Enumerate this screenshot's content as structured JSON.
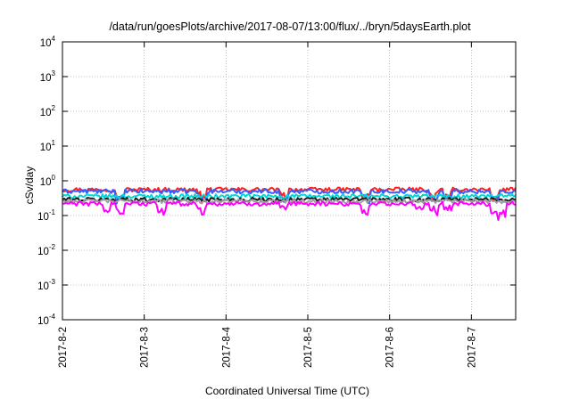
{
  "chart_data": {
    "type": "line",
    "title": "/data/run/goesPlots/archive/2017-08-07/13:00/flux/../bryn/5daysEarth.plot",
    "xlabel": "Coordinated Universal Time (UTC)",
    "ylabel": "cSv/day",
    "yscale": "log",
    "ylim": [
      0.0001,
      10000
    ],
    "xlim": [
      "2017-08-02T00:00",
      "2017-08-07T13:00"
    ],
    "grid": true,
    "legend": "none",
    "yticks": [
      {
        "value": 0.0001,
        "base": "10",
        "exp": "-4"
      },
      {
        "value": 0.001,
        "base": "10",
        "exp": "-3"
      },
      {
        "value": 0.01,
        "base": "10",
        "exp": "-2"
      },
      {
        "value": 0.1,
        "base": "10",
        "exp": "-1"
      },
      {
        "value": 1,
        "base": "10",
        "exp": "0"
      },
      {
        "value": 10,
        "base": "10",
        "exp": "1"
      },
      {
        "value": 100,
        "base": "10",
        "exp": "2"
      },
      {
        "value": 1000,
        "base": "10",
        "exp": "3"
      },
      {
        "value": 10000,
        "base": "10",
        "exp": "4"
      }
    ],
    "xticks": [
      {
        "value": "2017-08-02",
        "label": "2017-8-2"
      },
      {
        "value": "2017-08-03",
        "label": "2017-8-3"
      },
      {
        "value": "2017-08-04",
        "label": "2017-8-4"
      },
      {
        "value": "2017-08-05",
        "label": "2017-8-5"
      },
      {
        "value": "2017-08-06",
        "label": "2017-8-6"
      },
      {
        "value": "2017-08-07",
        "label": "2017-8-7"
      }
    ],
    "series": [
      {
        "color": "#ff2020",
        "base": 0.56,
        "dips": [
          "2017-08-02T17:00",
          "2017-08-03T17:00",
          "2017-08-04T17:00",
          "2017-08-05T17:00",
          "2017-08-06T13:00",
          "2017-08-06T17:00",
          "2017-08-07T07:00"
        ]
      },
      {
        "color": "#3a5cff",
        "base": 0.5,
        "dips": [
          "2017-08-02T17:00",
          "2017-08-03T17:00",
          "2017-08-04T17:00",
          "2017-08-05T17:00",
          "2017-08-06T13:00",
          "2017-08-06T17:00",
          "2017-08-07T07:00"
        ]
      },
      {
        "color": "#00d8d8",
        "base": 0.36,
        "dips": []
      },
      {
        "color": "#1a1a1a",
        "base": 0.29,
        "dips": []
      },
      {
        "color": "#a0a0a0",
        "base": 0.26,
        "dips": []
      },
      {
        "color": "#ff00ff",
        "base": 0.22,
        "dips": [
          "2017-08-02T13:00",
          "2017-08-02T17:00",
          "2017-08-03T05:00",
          "2017-08-03T17:00",
          "2017-08-04T17:00",
          "2017-08-05T17:00",
          "2017-08-06T09:00",
          "2017-08-06T13:00",
          "2017-08-06T17:00",
          "2017-08-07T07:00",
          "2017-08-07T09:00"
        ]
      }
    ]
  }
}
